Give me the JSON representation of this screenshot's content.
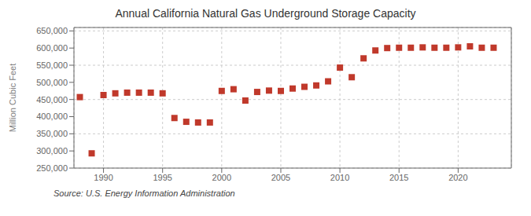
{
  "chart_data": {
    "type": "scatter",
    "title": "Annual California Natural Gas Underground Storage Capacity",
    "ylabel": "Million Cubic Feet",
    "source": "Source: U.S. Energy Information Administration",
    "color": "#c0392b",
    "marker": "square",
    "grid": true,
    "xlim": [
      1987.5,
      2024.5
    ],
    "xticks": [
      1990,
      1995,
      2000,
      2005,
      2010,
      2015,
      2020
    ],
    "ylim": [
      250000,
      660000
    ],
    "yticks": [
      {
        "value": 250000,
        "label": "250,000"
      },
      {
        "value": 300000,
        "label": "300,000"
      },
      {
        "value": 350000,
        "label": "350,000"
      },
      {
        "value": 400000,
        "label": "400,000"
      },
      {
        "value": 450000,
        "label": "450,000"
      },
      {
        "value": 500000,
        "label": "500,000"
      },
      {
        "value": 550000,
        "label": "550,000"
      },
      {
        "value": 600000,
        "label": "600,000"
      },
      {
        "value": 650000,
        "label": "650,000"
      }
    ],
    "x": [
      1988,
      1989,
      1990,
      1991,
      1992,
      1993,
      1994,
      1995,
      1996,
      1997,
      1998,
      1999,
      2000,
      2001,
      2002,
      2003,
      2004,
      2005,
      2006,
      2007,
      2008,
      2009,
      2010,
      2011,
      2012,
      2013,
      2014,
      2015,
      2016,
      2017,
      2018,
      2019,
      2020,
      2021,
      2022,
      2023
    ],
    "values": [
      457000,
      293000,
      463000,
      468000,
      470000,
      470000,
      470000,
      468000,
      396000,
      385000,
      383000,
      383000,
      475000,
      480000,
      447000,
      472000,
      476000,
      475000,
      482000,
      487000,
      491000,
      503000,
      543000,
      515000,
      570000,
      593000,
      600000,
      601000,
      601000,
      602000,
      601000,
      601000,
      602000,
      605000,
      601000,
      601000
    ]
  }
}
